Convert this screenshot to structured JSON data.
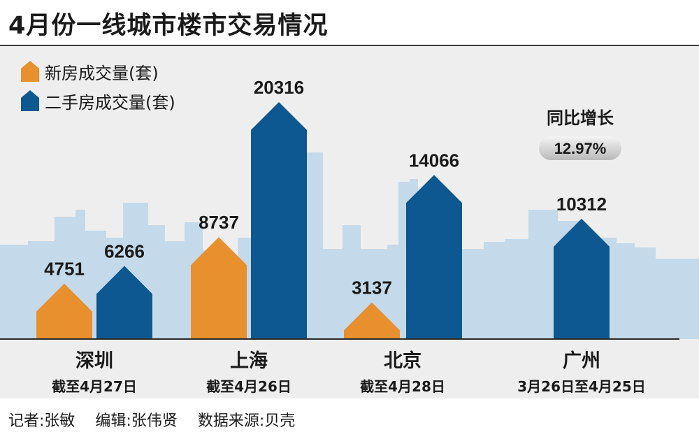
{
  "title": "4月份一线城市楼市交易情况",
  "legend": {
    "new_label": "新房成交量(套)",
    "used_label": "二手房成交量(套)"
  },
  "colors": {
    "new": "#e88f2e",
    "used": "#0d5890",
    "skyline": "#bcd6ea",
    "background": "#eeeeee",
    "axis": "#2a2a2a"
  },
  "chart_data": {
    "type": "bar",
    "title": "4月份一线城市楼市交易情况",
    "categories": [
      "深圳",
      "上海",
      "北京",
      "广州"
    ],
    "category_notes": [
      "截至4月27日",
      "截至4月26日",
      "截至4月28日",
      "3月26日至4月25日"
    ],
    "series": [
      {
        "name": "新房成交量(套)",
        "values": [
          4751,
          8737,
          3137,
          null
        ]
      },
      {
        "name": "二手房成交量(套)",
        "values": [
          6266,
          20316,
          14066,
          10312
        ]
      }
    ],
    "annotations": [
      {
        "category": "广州",
        "label": "同比增长",
        "value": "12.97%"
      }
    ],
    "grid": false,
    "legend_position": "top-left"
  },
  "footer": {
    "reporter": "记者:张敏",
    "editor": "编辑:张伟贤",
    "source": "数据来源:贝壳"
  }
}
